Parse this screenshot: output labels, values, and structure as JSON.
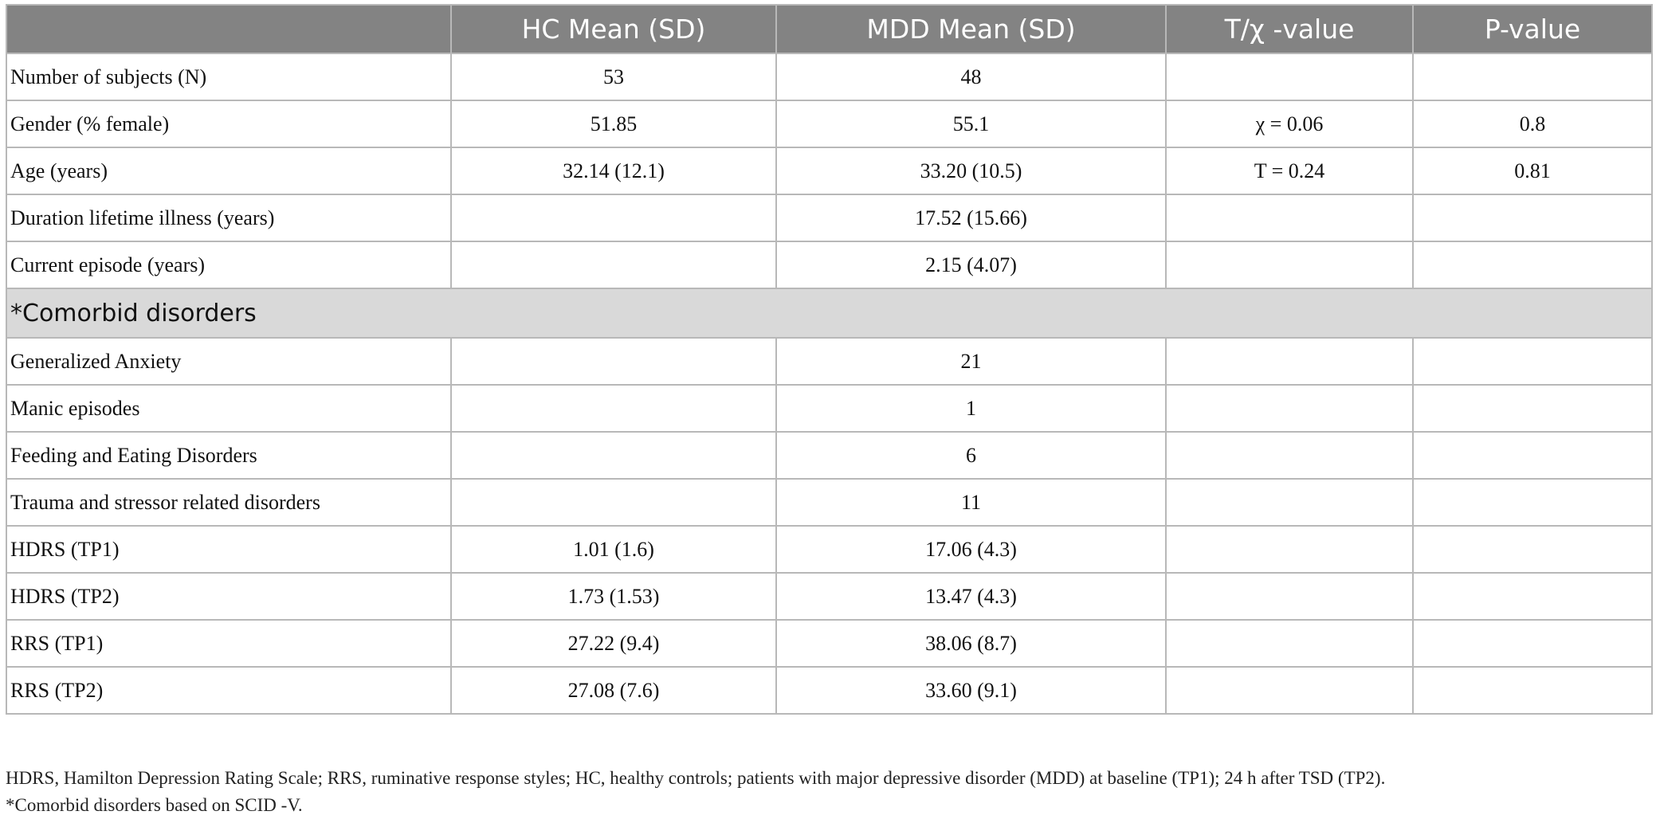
{
  "table": {
    "headers": [
      "HC Mean (SD)",
      "MDD Mean (SD)",
      "T/χ -value",
      "P-value"
    ],
    "header_first": "",
    "rows": [
      {
        "label": "Number of subjects (N)",
        "hc": "53",
        "mdd": "48",
        "stat": "",
        "p": ""
      },
      {
        "label": "Gender (% female)",
        "hc": "51.85",
        "mdd": "55.1",
        "stat": "χ = 0.06",
        "p": "0.8"
      },
      {
        "label": "Age (years)",
        "hc": "32.14 (12.1)",
        "mdd": "33.20 (10.5)",
        "stat": "T = 0.24",
        "p": "0.81"
      },
      {
        "label": "Duration lifetime illness (years)",
        "hc": "",
        "mdd": "17.52 (15.66)",
        "stat": "",
        "p": ""
      },
      {
        "label": "Current episode (years)",
        "hc": "",
        "mdd": "2.15 (4.07)",
        "stat": "",
        "p": ""
      }
    ],
    "section_label": "*Comorbid disorders",
    "section_rows": [
      {
        "label": "Generalized Anxiety",
        "hc": "",
        "mdd": "21",
        "stat": "",
        "p": ""
      },
      {
        "label": "Manic episodes",
        "hc": "",
        "mdd": "1",
        "stat": "",
        "p": ""
      },
      {
        "label": "Feeding and Eating Disorders",
        "hc": "",
        "mdd": "6",
        "stat": "",
        "p": ""
      },
      {
        "label": "Trauma and stressor related disorders",
        "hc": "",
        "mdd": "11",
        "stat": "",
        "p": ""
      },
      {
        "label": "HDRS (TP1)",
        "hc": "1.01 (1.6)",
        "mdd": "17.06 (4.3)",
        "stat": "",
        "p": ""
      },
      {
        "label": "HDRS (TP2)",
        "hc": "1.73 (1.53)",
        "mdd": "13.47 (4.3)",
        "stat": "",
        "p": ""
      },
      {
        "label": "RRS (TP1)",
        "hc": "27.22 (9.4)",
        "mdd": "38.06 (8.7)",
        "stat": "",
        "p": ""
      },
      {
        "label": "RRS (TP2)",
        "hc": "27.08 (7.6)",
        "mdd": "33.60 (9.1)",
        "stat": "",
        "p": ""
      }
    ]
  },
  "footnotes": [
    "HDRS, Hamilton Depression Rating Scale; RRS, ruminative response styles; HC, healthy controls; patients with major depressive disorder (MDD) at baseline (TP1); 24 h after TSD (TP2).",
    "*Comorbid disorders based on SCID -V."
  ],
  "colors": {
    "header_bg": "#838383",
    "section_bg": "#d9d9d9",
    "border": "#b8b8b8"
  }
}
